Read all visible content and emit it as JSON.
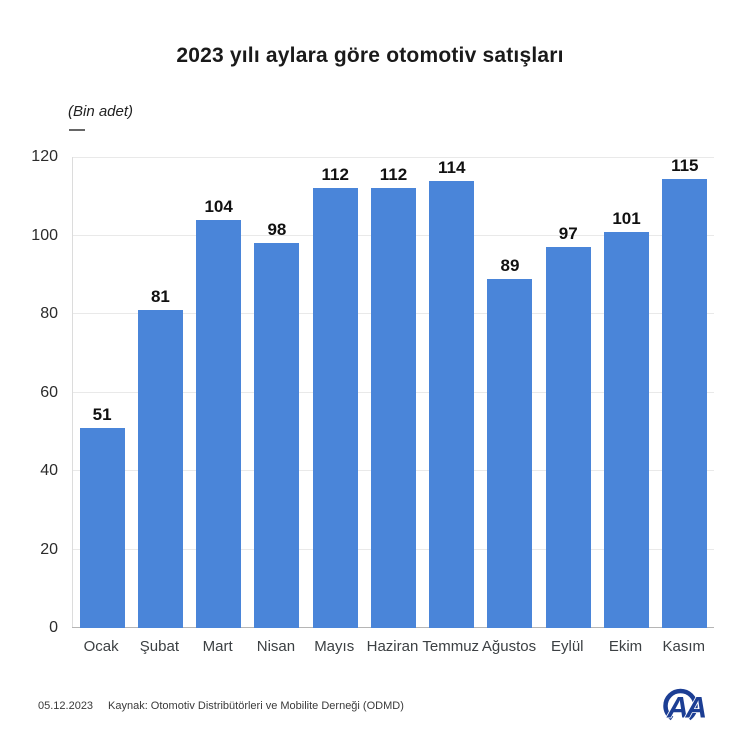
{
  "chart_data": {
    "type": "bar",
    "title": "2023 yılı aylara göre otomotiv satışları",
    "subtitle": "(Bin adet)",
    "categories": [
      "Ocak",
      "Şubat",
      "Mart",
      "Nisan",
      "Mayıs",
      "Haziran",
      "Temmuz",
      "Ağustos",
      "Eylül",
      "Ekim",
      "Kasım"
    ],
    "values": [
      51,
      81,
      104,
      98,
      112,
      112,
      114,
      89,
      97,
      101,
      115
    ],
    "xlabel": "",
    "ylabel": "",
    "ylim": [
      0,
      120
    ],
    "yticks": [
      0,
      20,
      40,
      60,
      80,
      100,
      120
    ],
    "grid": true,
    "legend": "none",
    "bar_color": "#4a85d9"
  },
  "footer": {
    "date": "05.12.2023",
    "source": "Kaynak: Otomotiv Distribütörleri ve Mobilite Derneği (ODMD)"
  },
  "logo": {
    "name": "aa-logo",
    "text": "AA",
    "color": "#1c3e94"
  },
  "colors": {
    "background": "#ffffff",
    "bar": "#4a85d9",
    "gridline": "#e9e9e9",
    "axis": "#b5b5b5",
    "title_text": "#1a1a1a"
  }
}
